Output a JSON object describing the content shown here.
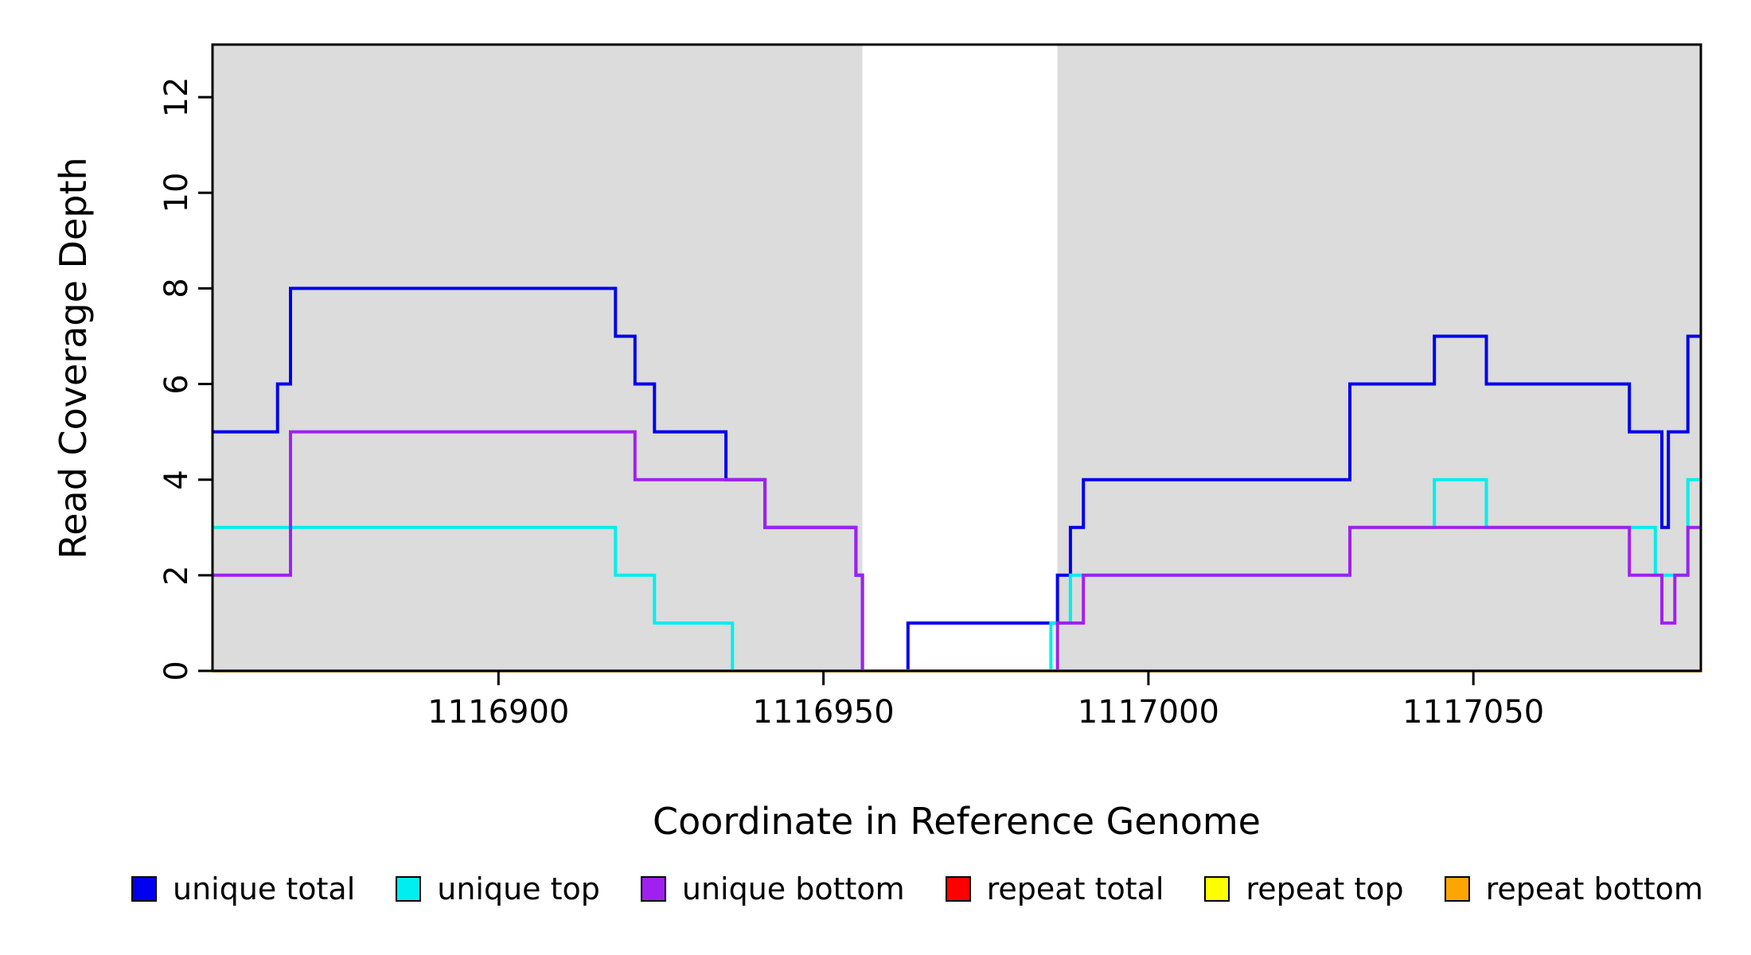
{
  "figure": {
    "ylab": "Read Coverage Depth",
    "xlab": "Coordinate in Reference Genome"
  },
  "chart_data": {
    "type": "line",
    "subtype": "step-coverage-plot",
    "title": "",
    "xlabel": "Coordinate in Reference Genome",
    "ylabel": "Read Coverage Depth",
    "grid": false,
    "legend_position": "bottom",
    "x_axis": {
      "range": [
        1116856,
        1117085
      ],
      "ticks": [
        1116900,
        1116950,
        1117000,
        1117050
      ]
    },
    "y_axis": {
      "range": [
        0,
        13.1
      ],
      "ticks": [
        0,
        2,
        4,
        6,
        8,
        10,
        12
      ]
    },
    "background": {
      "plot": "#DCDCDC",
      "highlight_band": {
        "x": [
          1116956,
          1116986
        ],
        "color": "#FFFFFF"
      }
    },
    "axis_color": "#000000",
    "series": [
      {
        "name": "unique total",
        "color": "#0000EE",
        "points": [
          [
            1116856,
            5
          ],
          [
            1116866,
            6
          ],
          [
            1116868,
            8
          ],
          [
            1116918,
            7
          ],
          [
            1116921,
            6
          ],
          [
            1116924,
            5
          ],
          [
            1116935,
            4
          ],
          [
            1116941,
            3
          ],
          [
            1116955,
            2
          ],
          [
            1116956,
            0
          ],
          [
            1116963,
            1
          ],
          [
            1116986,
            2
          ],
          [
            1116988,
            3
          ],
          [
            1116990,
            4
          ],
          [
            1117031,
            6
          ],
          [
            1117044,
            7
          ],
          [
            1117052,
            6
          ],
          [
            1117074,
            5
          ],
          [
            1117079,
            3
          ],
          [
            1117080,
            5
          ],
          [
            1117083,
            7
          ]
        ]
      },
      {
        "name": "unique top",
        "color": "#00EEEE",
        "points": [
          [
            1116856,
            3
          ],
          [
            1116918,
            2
          ],
          [
            1116924,
            1
          ],
          [
            1116936,
            0
          ],
          [
            1116985,
            1
          ],
          [
            1116988,
            2
          ],
          [
            1117031,
            3
          ],
          [
            1117044,
            4
          ],
          [
            1117052,
            3
          ],
          [
            1117078,
            2
          ],
          [
            1117083,
            4
          ]
        ]
      },
      {
        "name": "unique bottom",
        "color": "#A020F0",
        "points": [
          [
            1116856,
            2
          ],
          [
            1116868,
            5
          ],
          [
            1116921,
            4
          ],
          [
            1116941,
            3
          ],
          [
            1116955,
            2
          ],
          [
            1116956,
            0
          ],
          [
            1116986,
            1
          ],
          [
            1116990,
            2
          ],
          [
            1117031,
            3
          ],
          [
            1117074,
            2
          ],
          [
            1117079,
            1
          ],
          [
            1117081,
            2
          ],
          [
            1117083,
            3
          ]
        ]
      },
      {
        "name": "repeat total",
        "color": "#FF0000",
        "points": [
          [
            1116856,
            0
          ]
        ]
      },
      {
        "name": "repeat top",
        "color": "#FFFF00",
        "points": [
          [
            1116856,
            0
          ]
        ]
      },
      {
        "name": "repeat bottom",
        "color": "#FFA500",
        "points": [
          [
            1116856,
            0
          ]
        ]
      }
    ]
  }
}
